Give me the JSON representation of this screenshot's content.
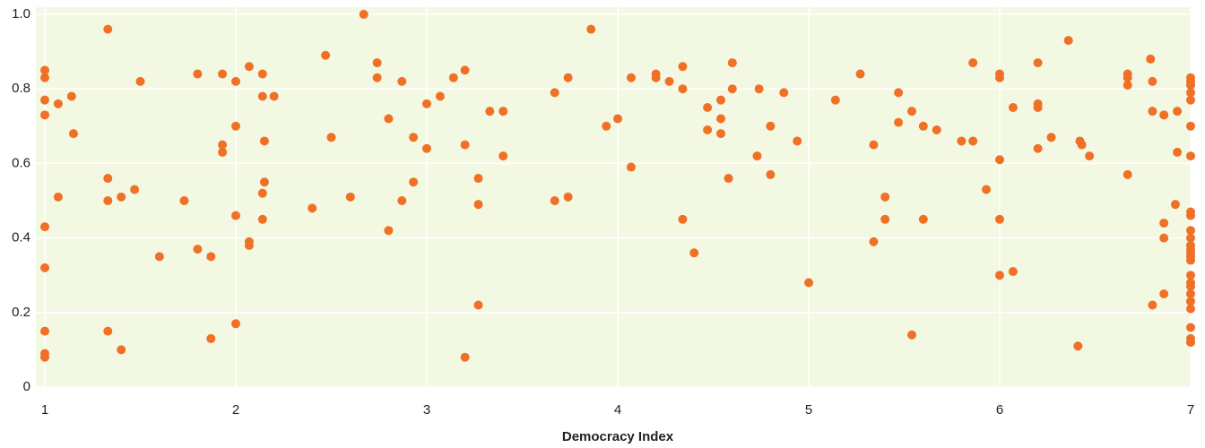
{
  "chart_data": {
    "type": "scatter",
    "x_label": "Democracy Index",
    "color": "#f07026",
    "background": "#f3f8e3",
    "grid": true,
    "xlim": [
      1,
      7
    ],
    "xticks": [
      1,
      2,
      3,
      4,
      5,
      6,
      7
    ],
    "ylim": [
      0,
      1
    ],
    "yticks": [
      0,
      0.2,
      0.4,
      0.6,
      0.8,
      {
        "value": 1,
        "label": "1.0"
      }
    ],
    "x": [
      1,
      1,
      1,
      1,
      1,
      1,
      1,
      1,
      1,
      1.07,
      1.07,
      1.14,
      1.15,
      1.33,
      1.33,
      1.33,
      1.33,
      1.4,
      1.4,
      1.47,
      1.5,
      1.6,
      1.73,
      1.8,
      1.8,
      1.87,
      1.87,
      1.93,
      1.93,
      1.93,
      2,
      2,
      2,
      2,
      2.07,
      2.07,
      2.07,
      2.14,
      2.14,
      2.14,
      2.14,
      2.15,
      2.15,
      2.2,
      2.4,
      2.47,
      2.5,
      2.6,
      2.67,
      2.74,
      2.74,
      2.8,
      2.8,
      2.87,
      2.87,
      2.93,
      2.93,
      3,
      3,
      3.07,
      3.14,
      3.2,
      3.2,
      3.2,
      3.27,
      3.27,
      3.27,
      3.33,
      3.4,
      3.4,
      3.67,
      3.67,
      3.74,
      3.74,
      3.86,
      3.94,
      4,
      4.07,
      4.07,
      4.2,
      4.2,
      4.27,
      4.34,
      4.34,
      4.34,
      4.4,
      4.47,
      4.47,
      4.54,
      4.54,
      4.54,
      4.58,
      4.6,
      4.6,
      4.73,
      4.74,
      4.8,
      4.8,
      4.87,
      4.94,
      5,
      5.14,
      5.27,
      5.34,
      5.34,
      5.4,
      5.4,
      5.47,
      5.47,
      5.54,
      5.54,
      5.6,
      5.6,
      5.67,
      5.8,
      5.86,
      5.86,
      5.93,
      6,
      6,
      6,
      6,
      6,
      6.07,
      6.07,
      6.2,
      6.2,
      6.2,
      6.2,
      6.27,
      6.36,
      6.41,
      6.42,
      6.43,
      6.47,
      6.67,
      6.67,
      6.67,
      6.67,
      6.79,
      6.8,
      6.8,
      6.8,
      6.86,
      6.86,
      6.86,
      6.86,
      6.92,
      6.93,
      6.93,
      7,
      7,
      7,
      7,
      7,
      7,
      7,
      7,
      7,
      7,
      7,
      7,
      7,
      7,
      7,
      7,
      7,
      7,
      7,
      7,
      7,
      7,
      7,
      7,
      7
    ],
    "y": [
      0.85,
      0.83,
      0.77,
      0.73,
      0.43,
      0.32,
      0.15,
      0.09,
      0.08,
      0.76,
      0.51,
      0.78,
      0.68,
      0.96,
      0.56,
      0.5,
      0.15,
      0.1,
      0.51,
      0.53,
      0.82,
      0.35,
      0.5,
      0.84,
      0.37,
      0.35,
      0.13,
      0.84,
      0.65,
      0.63,
      0.82,
      0.7,
      0.46,
      0.17,
      0.86,
      0.39,
      0.38,
      0.84,
      0.78,
      0.52,
      0.45,
      0.66,
      0.55,
      0.78,
      0.48,
      0.89,
      0.67,
      0.51,
      1,
      0.87,
      0.83,
      0.42,
      0.72,
      0.82,
      0.5,
      0.67,
      0.55,
      0.76,
      0.64,
      0.78,
      0.83,
      0.85,
      0.65,
      0.08,
      0.56,
      0.49,
      0.22,
      0.74,
      0.74,
      0.62,
      0.79,
      0.5,
      0.83,
      0.51,
      0.96,
      0.7,
      0.72,
      0.83,
      0.59,
      0.84,
      0.83,
      0.82,
      0.86,
      0.8,
      0.45,
      0.36,
      0.75,
      0.69,
      0.77,
      0.72,
      0.68,
      0.56,
      0.87,
      0.8,
      0.62,
      0.8,
      0.57,
      0.7,
      0.79,
      0.66,
      0.28,
      0.77,
      0.84,
      0.65,
      0.39,
      0.51,
      0.45,
      0.79,
      0.71,
      0.74,
      0.14,
      0.7,
      0.45,
      0.69,
      0.66,
      0.87,
      0.66,
      0.53,
      0.84,
      0.83,
      0.61,
      0.45,
      0.3,
      0.75,
      0.31,
      0.87,
      0.76,
      0.75,
      0.64,
      0.67,
      0.93,
      0.11,
      0.66,
      0.65,
      0.62,
      0.84,
      0.83,
      0.81,
      0.57,
      0.88,
      0.82,
      0.74,
      0.22,
      0.73,
      0.4,
      0.44,
      0.25,
      0.49,
      0.63,
      0.74,
      0.83,
      0.82,
      0.81,
      0.79,
      0.77,
      0.7,
      0.62,
      0.47,
      0.46,
      0.42,
      0.4,
      0.38,
      0.37,
      0.36,
      0.35,
      0.34,
      0.3,
      0.28,
      0.27,
      0.25,
      0.23,
      0.21,
      0.16,
      0.13,
      0.12
    ]
  }
}
